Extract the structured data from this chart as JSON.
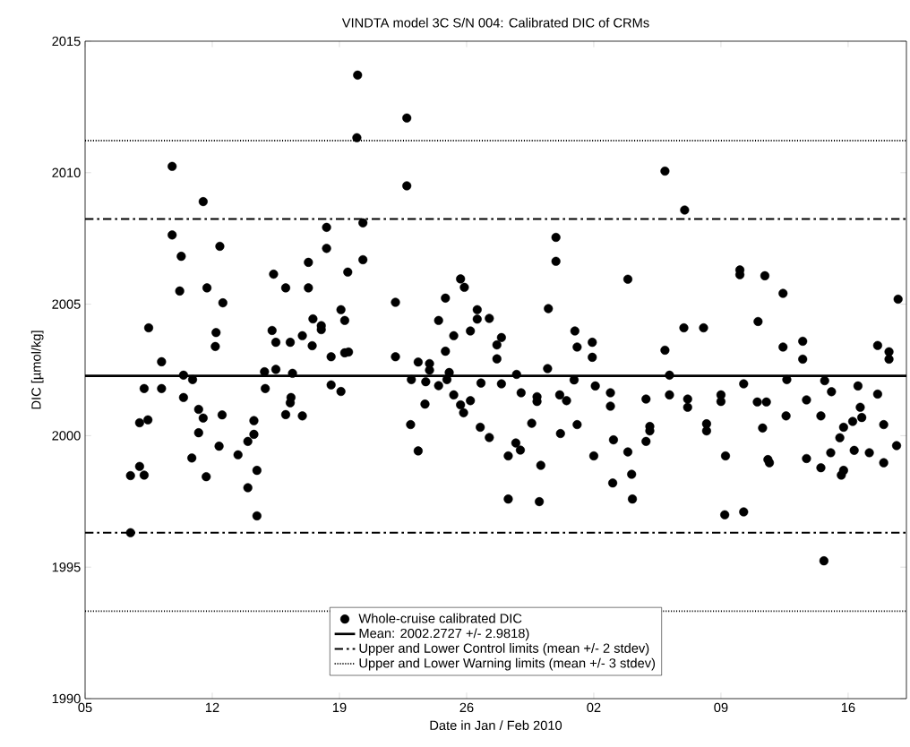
{
  "chart_data": {
    "type": "scatter",
    "title": "VINDTA model 3C S/N 004: Calibrated DIC of CRMs",
    "xlabel": "Date in Jan / Feb 2010",
    "ylabel": "DIC [µmol/kg]",
    "xlim": [
      "2010-01-05",
      "2010-02-19T05:00"
    ],
    "xticks": [
      {
        "value": "2010-01-05",
        "label": "05"
      },
      {
        "value": "2010-01-12",
        "label": "12"
      },
      {
        "value": "2010-01-19",
        "label": "19"
      },
      {
        "value": "2010-01-26",
        "label": "26"
      },
      {
        "value": "2010-02-02",
        "label": "02"
      },
      {
        "value": "2010-02-09",
        "label": "09"
      },
      {
        "value": "2010-02-16",
        "label": "16"
      }
    ],
    "ylim": [
      1990,
      2015
    ],
    "yticks": [
      1990,
      1995,
      2000,
      2005,
      2010,
      2015
    ],
    "marker": "circle",
    "legend": "bottom",
    "series": [
      {
        "name": "Whole-cruise calibrated DIC",
        "color": "#000000",
        "x": [
          "2010-01-09T19:00",
          "2010-01-11T12:00",
          "2010-01-09T19:00",
          "2010-01-10T07:00",
          "2010-01-12T10:00",
          "2010-01-10T05:00",
          "2010-01-11T17:00",
          "2010-01-12T14:00",
          "2010-01-15T09:00",
          "2010-01-16T01:00",
          "2010-01-08T12:00",
          "2010-01-12T05:00",
          "2010-01-12T04:00",
          "2010-01-15T07:00",
          "2010-01-15T12:00",
          "2010-01-16T07:00",
          "2010-01-09T05:00",
          "2010-01-10T10:00",
          "2010-01-10T22:00",
          "2010-01-14T21:00",
          "2010-01-15T12:00",
          "2010-01-16T10:00",
          "2010-01-08T06:00",
          "2010-01-09T05:00",
          "2010-01-14T22:00",
          "2010-01-10T10:00",
          "2010-01-11T06:00",
          "2010-01-11T12:00",
          "2010-01-12T13:00",
          "2010-01-16T01:00",
          "2010-01-16T08:00",
          "2010-01-16T07:00",
          "2010-01-08T00:00",
          "2010-01-08T11:00",
          "2010-01-11T06:00",
          "2010-01-14T07:00",
          "2010-01-14T07:00",
          "2010-01-13T23:00",
          "2010-01-12T09:00",
          "2010-01-10T21:00",
          "2010-01-13T10:00",
          "2010-01-08T00:00",
          "2010-01-07T12:00",
          "2010-01-08T06:00",
          "2010-01-11T16:00",
          "2010-01-14T11:00",
          "2010-01-13T23:00",
          "2010-01-14T11:00",
          "2010-01-07T12:00",
          "2010-01-20T00:00",
          "2010-01-22T17:00",
          "2010-01-19T23:00",
          "2010-01-22T17:00",
          "2010-01-18T07:00",
          "2010-01-20T07:00",
          "2010-01-18T07:00",
          "2010-01-17T07:00",
          "2010-01-20T07:00",
          "2010-01-19T11:00",
          "2010-01-17T07:00",
          "2010-01-22T02:00",
          "2010-01-25T16:00",
          "2010-01-25T21:00",
          "2010-01-24T20:00",
          "2010-01-19T02:00",
          "2010-01-19T07:00",
          "2010-01-17T13:00",
          "2010-01-18T00:00",
          "2010-01-18T00:00",
          "2010-01-16T23:00",
          "2010-01-17T12:00",
          "2010-01-24T11:00",
          "2010-01-26T14:00",
          "2010-01-26T14:00",
          "2010-01-27T06:00",
          "2010-01-26T05:00",
          "2010-01-25T07:00",
          "2010-01-24T20:00",
          "2010-01-18T13:00",
          "2010-01-19T07:00",
          "2010-01-19T12:00",
          "2010-01-22T02:00",
          "2010-01-23T08:00",
          "2010-01-23T23:00",
          "2010-01-23T23:00",
          "2010-01-25T01:00",
          "2010-01-22T23:00",
          "2010-01-23T18:00",
          "2010-01-24T11:00",
          "2010-01-24T22:00",
          "2010-01-26T19:00",
          "2010-01-18T13:00",
          "2010-01-19T02:00",
          "2010-01-23T17:00",
          "2010-01-25T07:00",
          "2010-01-25T16:00",
          "2010-01-25T20:00",
          "2010-01-26T05:00",
          "2010-01-16T23:00",
          "2010-01-22T22:00",
          "2010-01-26T18:00",
          "2010-01-27T06:00",
          "2010-01-23T08:00",
          "2010-02-05T22:00",
          "2010-02-07T00:00",
          "2010-01-30T22:00",
          "2010-01-30T22:00",
          "2010-02-03T21:00",
          "2010-01-30T12:00",
          "2010-01-27T22:00",
          "2010-01-27T16:00",
          "2010-01-27T16:00",
          "2010-01-31T23:00",
          "2010-02-01T02:00",
          "2010-02-01T22:00",
          "2010-02-01T22:00",
          "2010-02-06T23:00",
          "2010-02-05T22:00",
          "2010-01-30T11:00",
          "2010-01-28T18:00",
          "2010-02-06T04:00",
          "2010-01-27T22:00",
          "2010-01-31T22:00",
          "2010-02-02T02:00",
          "2010-01-29T00:00",
          "2010-01-29T21:00",
          "2010-01-29T21:00",
          "2010-01-31T03:00",
          "2010-01-31T12:00",
          "2010-02-02T22:00",
          "2010-02-02T22:00",
          "2010-02-04T21:00",
          "2010-02-06T04:00",
          "2010-02-07T04:00",
          "2010-02-07T04:00",
          "2010-01-29T14:00",
          "2010-02-01T02:00",
          "2010-01-31T04:00",
          "2010-01-28T17:00",
          "2010-01-28T23:00",
          "2010-01-28T07:00",
          "2010-01-30T02:00",
          "2010-02-02T00:00",
          "2010-02-03T02:00",
          "2010-02-03T21:00",
          "2010-02-04T02:00",
          "2010-02-03T01:00",
          "2010-02-04T21:00",
          "2010-02-05T02:00",
          "2010-02-05T02:00",
          "2010-01-28T07:00",
          "2010-01-30T00:00",
          "2010-02-04T03:00",
          "2010-02-10T01:00",
          "2010-02-10T01:00",
          "2010-02-11T10:00",
          "2010-02-12T10:00",
          "2010-02-18T18:00",
          "2010-02-11T01:00",
          "2010-02-08T01:00",
          "2010-02-12T10:00",
          "2010-02-13T12:00",
          "2010-02-13T12:00",
          "2010-02-17T15:00",
          "2010-02-18T06:00",
          "2010-02-18T06:00",
          "2010-02-10T06:00",
          "2010-02-12T15:00",
          "2010-02-14T17:00",
          "2010-02-15T02:00",
          "2010-02-16T13:00",
          "2010-02-17T15:00",
          "2010-02-09T00:00",
          "2010-02-09T00:00",
          "2010-02-11T00:00",
          "2010-02-11T12:00",
          "2010-02-13T17:00",
          "2010-02-12T14:00",
          "2010-02-14T12:00",
          "2010-02-16T16:00",
          "2010-02-16T18:00",
          "2010-02-16T06:00",
          "2010-02-15T18:00",
          "2010-02-15T13:00",
          "2010-02-17T23:00",
          "2010-02-18T16:00",
          "2010-02-08T05:00",
          "2010-02-08T05:00",
          "2010-02-11T07:00",
          "2010-02-09T06:00",
          "2010-02-11T14:00",
          "2010-02-11T16:00",
          "2010-02-13T17:00",
          "2010-02-14T12:00",
          "2010-02-15T01:00",
          "2010-02-16T08:00",
          "2010-02-17T04:00",
          "2010-02-17T23:00",
          "2010-02-15T18:00",
          "2010-02-15T15:00",
          "2010-02-09T05:00",
          "2010-02-10T06:00",
          "2010-02-14T16:00"
        ],
        "values": [
          2010.24,
          2008.9,
          2007.63,
          2006.82,
          2007.2,
          2005.5,
          2005.62,
          2005.05,
          2006.14,
          2005.62,
          2004.1,
          2003.92,
          2003.39,
          2004.0,
          2003.55,
          2003.55,
          2002.81,
          2002.3,
          2002.13,
          2002.43,
          2002.52,
          2002.37,
          2001.79,
          2001.79,
          2001.79,
          2001.45,
          2001.0,
          2000.67,
          2000.79,
          2000.8,
          2001.45,
          2001.25,
          2000.49,
          2000.6,
          2000.11,
          2000.57,
          2000.05,
          1999.78,
          1999.6,
          1999.15,
          1999.27,
          1998.83,
          1998.48,
          1998.5,
          1998.44,
          1998.68,
          1998.02,
          1996.95,
          1996.31,
          2013.71,
          2012.08,
          2011.33,
          2009.5,
          2007.92,
          2008.09,
          2007.12,
          2006.59,
          2006.69,
          2006.22,
          2005.62,
          2005.07,
          2005.96,
          2005.64,
          2005.23,
          2004.79,
          2004.38,
          2004.44,
          2004.18,
          2004.03,
          2003.8,
          2003.42,
          2004.38,
          2004.79,
          2004.43,
          2004.46,
          2003.98,
          2003.8,
          2003.21,
          2003.0,
          2003.15,
          2003.18,
          2003.0,
          2002.8,
          2002.74,
          2002.49,
          2002.4,
          2002.13,
          2002.05,
          2001.9,
          2002.13,
          2002.0,
          2001.93,
          2001.68,
          2001.2,
          2001.55,
          2001.17,
          2000.87,
          2001.33,
          2000.75,
          2000.42,
          2000.32,
          1999.93,
          1999.42,
          2010.06,
          2008.58,
          2007.54,
          2006.63,
          2005.95,
          2004.83,
          2003.73,
          2003.45,
          2002.92,
          2003.98,
          2003.37,
          2003.55,
          2002.98,
          2004.1,
          2003.25,
          2002.55,
          2002.33,
          2002.3,
          2001.97,
          2002.12,
          2001.89,
          2001.63,
          2001.48,
          2001.3,
          2001.55,
          2001.33,
          2001.63,
          2001.12,
          2001.39,
          2001.55,
          2001.39,
          2001.08,
          2000.47,
          2000.42,
          2000.08,
          1999.72,
          1999.45,
          1999.23,
          1998.87,
          1999.23,
          1999.84,
          1999.38,
          1998.53,
          1998.2,
          1999.78,
          2000.35,
          2000.18,
          1997.59,
          1997.49,
          1997.59,
          2006.3,
          2006.12,
          2006.08,
          2005.41,
          2005.19,
          2004.34,
          2004.1,
          2003.37,
          2003.59,
          2002.91,
          2003.43,
          2003.19,
          2002.91,
          2001.97,
          2002.13,
          2002.09,
          2001.67,
          2001.89,
          2001.58,
          2001.55,
          2001.3,
          2001.28,
          2001.28,
          2001.36,
          2000.75,
          2000.75,
          2001.08,
          2000.69,
          2000.54,
          2000.32,
          1999.92,
          2000.42,
          1999.62,
          2000.45,
          2000.18,
          2000.29,
          1999.23,
          1999.09,
          1998.97,
          1999.13,
          1998.78,
          1999.35,
          1999.44,
          1999.35,
          1998.97,
          1998.68,
          1998.5,
          1996.99,
          1997.1,
          1995.24
        ]
      }
    ],
    "ref_lines": [
      {
        "axis": "y",
        "value": 2002.2727,
        "label": "Mean: 2002.2727 +/- 2.9818)",
        "color": "#000000",
        "line_style": "solid"
      },
      {
        "axis": "y",
        "value": 2008.2363,
        "label": "Upper and Lower Control limits (mean +/- 2 stdev)",
        "color": "#000000",
        "line_style": "dashdot"
      },
      {
        "axis": "y",
        "value": 2011.2181,
        "label": "Upper and Lower Warning limits (mean +/- 3 stdev)",
        "color": "#000000",
        "line_style": "dotted"
      },
      {
        "axis": "y",
        "value": 1996.3091,
        "color": "#000000",
        "line_style": "dashdot"
      },
      {
        "axis": "y",
        "value": 1993.3273,
        "color": "#000000",
        "line_style": "dotted"
      }
    ]
  }
}
